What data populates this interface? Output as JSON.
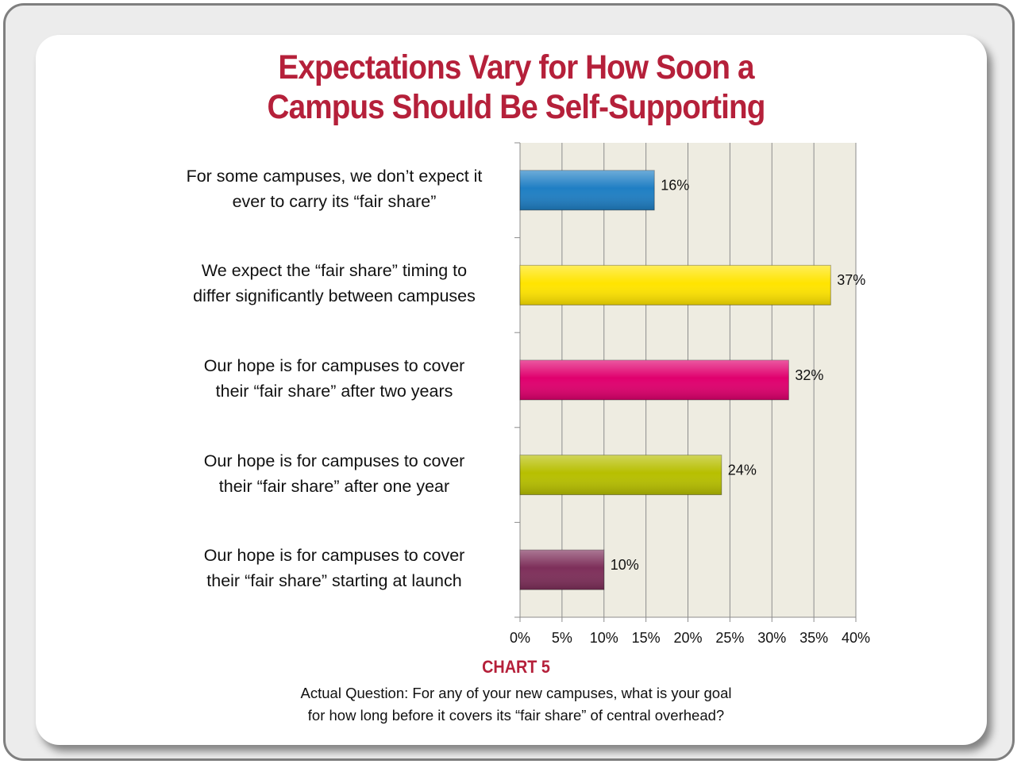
{
  "chart_data": {
    "type": "bar",
    "orientation": "horizontal",
    "title": "Expectations Vary for How Soon a\nCampus Should Be Self-Supporting",
    "categories": [
      "For some campuses, we don’t expect it\never to carry its “fair share”",
      "We expect the “fair share” timing to\ndiffer significantly between campuses",
      "Our hope is for campuses to cover\ntheir “fair share” after two years",
      "Our hope is for campuses to cover\ntheir “fair share” after one year",
      "Our hope is for campuses to cover\ntheir “fair share” starting at launch"
    ],
    "values": [
      16,
      37,
      32,
      24,
      10
    ],
    "value_labels": [
      "16%",
      "37%",
      "32%",
      "24%",
      "10%"
    ],
    "colors": [
      "#1f7fc4",
      "#ffe400",
      "#e0006e",
      "#b7bf00",
      "#7e2f5a"
    ],
    "xlim": [
      0,
      40
    ],
    "xticks": [
      {
        "value": 0,
        "label": "0%"
      },
      {
        "value": 5,
        "label": "5%"
      },
      {
        "value": 10,
        "label": "10%"
      },
      {
        "value": 15,
        "label": "15%"
      },
      {
        "value": 20,
        "label": "20%"
      },
      {
        "value": 25,
        "label": "25%"
      },
      {
        "value": 30,
        "label": "30%"
      },
      {
        "value": 35,
        "label": "35%"
      },
      {
        "value": 40,
        "label": "40%"
      }
    ],
    "grid": true,
    "chart_label": "CHART 5",
    "caption": "Actual Question: For any of your new campuses, what is your goal\nfor how long before it covers its “fair share” of central overhead?"
  }
}
